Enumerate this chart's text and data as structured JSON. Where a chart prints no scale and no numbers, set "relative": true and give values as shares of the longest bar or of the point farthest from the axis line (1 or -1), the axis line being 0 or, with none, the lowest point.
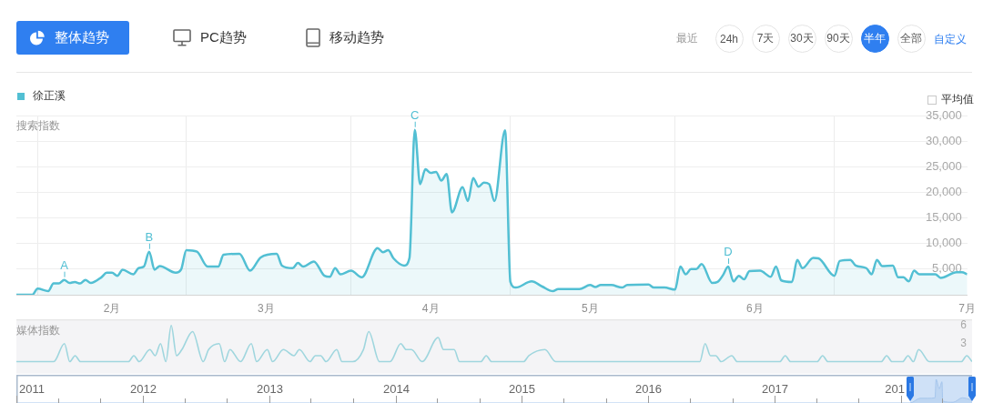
{
  "chart_data": [
    {
      "type": "other",
      "annotations": [
        "整体趋势",
        "PC趋势",
        "移动趋势",
        "最近",
        "24h",
        "7天",
        "30天",
        "90天",
        "半年",
        "全部",
        "自定义"
      ]
    },
    {
      "type": "area",
      "ylabel": "搜索指数",
      "legend": "top left",
      "grid": true,
      "marker": "none",
      "x": [
        "--01-28",
        "--01-31",
        "--02-01",
        "--02-03",
        "--02-04",
        "--02-05",
        "--02-06",
        "--02-07",
        "--02-08",
        "--02-09",
        "--02-10",
        "--02-11",
        "--02-13",
        "--02-14",
        "--02-15",
        "--02-16",
        "--02-17",
        "--02-19",
        "--02-20",
        "--02-21",
        "--02-22",
        "--02-23",
        "--02-24",
        "--02-27",
        "--02-28",
        "--03-01",
        "--03-03",
        "--03-05",
        "--03-07",
        "--03-08",
        "--03-11",
        "--03-13",
        "--03-15",
        "--03-18",
        "--03-19",
        "--03-21",
        "--03-22",
        "--03-23",
        "--03-25",
        "--03-27",
        "--03-28",
        "--03-29",
        "--03-30",
        "--04-01",
        "--04-03",
        "--04-06",
        "--04-07",
        "--04-08",
        "--04-09",
        "--04-11",
        "--04-12",
        "--04-13",
        "--04-14",
        "--04-15",
        "--04-16",
        "--04-17",
        "--04-18",
        "--04-19",
        "--04-20",
        "--04-22",
        "--04-23",
        "--04-24",
        "--04-25",
        "--04-26",
        "--04-27",
        "--04-28",
        "--04-30",
        "--05-01",
        "--05-02",
        "--05-05",
        "--05-07",
        "--05-09",
        "--05-10",
        "--05-14",
        "--05-16",
        "--05-17",
        "--05-18",
        "--05-20",
        "--05-22",
        "--05-23",
        "--05-27",
        "--05-28",
        "--05-30",
        "--06-01",
        "--06-02",
        "--06-03",
        "--06-04",
        "--06-05",
        "--06-06",
        "--06-08",
        "--06-09",
        "--06-10",
        "--06-11",
        "--06-12",
        "--06-13",
        "--06-14",
        "--06-15",
        "--06-17",
        "--06-19",
        "--06-20",
        "--06-21",
        "--06-23",
        "--06-24",
        "--06-25",
        "--06-27",
        "--06-28",
        "--07-01",
        "--07-02",
        "--07-04",
        "--07-05",
        "--07-07",
        "--07-08",
        "--07-09",
        "--07-10",
        "--07-12",
        "--07-13",
        "--07-14",
        "--07-15",
        "--07-16",
        "--07-17",
        "--07-20",
        "--07-21",
        "--07-24",
        "--07-25",
        "--07-26"
      ],
      "series": [
        {
          "name": "徐正溪",
          "color": "#52bfd3",
          "values": [
            0,
            0,
            1200,
            700,
            2200,
            2200,
            2900,
            2300,
            2500,
            2200,
            2900,
            2300,
            3400,
            4300,
            4300,
            3700,
            4900,
            4000,
            5200,
            5500,
            8400,
            4900,
            5600,
            4300,
            4900,
            8700,
            8400,
            5500,
            5500,
            7800,
            8000,
            4700,
            7300,
            8000,
            5700,
            5200,
            6200,
            5500,
            6500,
            3700,
            3500,
            5200,
            4000,
            4700,
            3400,
            9100,
            8300,
            8700,
            7100,
            5700,
            7200,
            32200,
            21600,
            24500,
            23800,
            24000,
            22300,
            23600,
            16100,
            21000,
            18300,
            22800,
            21100,
            21900,
            21600,
            18300,
            32100,
            2500,
            1400,
            2600,
            1600,
            700,
            1100,
            1100,
            1900,
            1500,
            1900,
            1900,
            1400,
            1900,
            2000,
            1400,
            1400,
            1000,
            5500,
            4000,
            5000,
            5000,
            6000,
            2300,
            2500,
            3800,
            5500,
            2600,
            3700,
            3000,
            4600,
            4700,
            3500,
            5500,
            2800,
            2500,
            6800,
            5200,
            7200,
            7100,
            3700,
            6600,
            6800,
            5700,
            5200,
            4000,
            6800,
            5600,
            5700,
            3400,
            3400,
            2600,
            4700,
            4000,
            4000,
            3300,
            4400,
            4400,
            4000
          ]
        }
      ],
      "xlim": [
        "--01-28",
        "--07-26"
      ],
      "xticks": [
        {
          "value": "--02-01",
          "label": null
        },
        {
          "value": "--02-15",
          "label": "2月"
        },
        {
          "value": "--03-01",
          "label": null
        },
        {
          "value": "--03-16",
          "label": "3月"
        },
        {
          "value": "--04-01",
          "label": null
        },
        {
          "value": "--04-16",
          "label": "4月"
        },
        {
          "value": "--05-01",
          "label": null
        },
        {
          "value": "--05-16",
          "label": "5月"
        },
        {
          "value": "--06-01",
          "label": null
        },
        {
          "value": "--06-16",
          "label": "6月"
        },
        {
          "value": "--07-01",
          "label": null
        },
        {
          "value": "--07-26",
          "label": "7月"
        }
      ],
      "ylim": [
        0,
        35000
      ],
      "yticks": [
        {
          "value": 5000,
          "label": "5,000"
        },
        {
          "value": 10000,
          "label": "10,000"
        },
        {
          "value": 15000,
          "label": "15,000"
        },
        {
          "value": 20000,
          "label": "20,000"
        },
        {
          "value": 25000,
          "label": "25,000"
        },
        {
          "value": 30000,
          "label": "30,000"
        },
        {
          "value": 35000,
          "label": "35,000"
        }
      ],
      "annotations": [
        "平均值",
        {
          "text": "A",
          "x": "--02-06",
          "y": 2900
        },
        {
          "text": "B",
          "x": "--02-22",
          "y": 8400
        },
        {
          "text": "C",
          "x": "--04-13",
          "y": 32200
        },
        {
          "text": "D",
          "x": "--06-11",
          "y": 5500
        }
      ]
    },
    {
      "type": "line",
      "ylabel": "媒体指数",
      "tick_labels": "y",
      "marker": "none",
      "x": [
        "--01-28",
        "--02-04",
        "--02-06",
        "--02-07",
        "--02-08",
        "--02-09",
        "--02-18",
        "--02-19",
        "--02-20",
        "--02-22",
        "--02-23",
        "--02-24",
        "--02-25",
        "--02-26",
        "--02-27",
        "--02-28",
        "--03-02",
        "--03-04",
        "--03-05",
        "--03-07",
        "--03-08",
        "--03-09",
        "--03-11",
        "--03-13",
        "--03-14",
        "--03-16",
        "--03-17",
        "--03-19",
        "--03-21",
        "--03-22",
        "--03-24",
        "--03-25",
        "--03-26",
        "--03-27",
        "--03-29",
        "--03-30",
        "--04-01",
        "--04-03",
        "--04-04",
        "--04-06",
        "--04-08",
        "--04-10",
        "--04-11",
        "--04-12",
        "--04-14",
        "--04-17",
        "--04-18",
        "--04-20",
        "--04-21",
        "--04-25",
        "--04-26",
        "--04-27",
        "--05-03",
        "--05-04",
        "--05-07",
        "--05-09",
        "--06-05",
        "--06-06",
        "--06-07",
        "--06-08",
        "--06-09",
        "--06-11",
        "--06-12",
        "--06-20",
        "--06-21",
        "--06-22",
        "--06-27",
        "--06-28",
        "--06-29",
        "--07-09",
        "--07-10",
        "--07-11",
        "--07-13",
        "--07-14",
        "--07-15",
        "--07-16",
        "--07-18",
        "--07-24",
        "--07-25",
        "--07-26"
      ],
      "series": [
        {
          "color": "#9fd6de",
          "values": [
            0,
            0,
            3,
            0,
            1,
            0,
            0,
            1,
            0,
            2,
            1,
            3,
            0,
            6,
            1,
            2,
            5,
            0,
            2,
            3,
            0,
            2,
            0,
            3,
            0,
            2,
            0,
            2,
            1,
            2,
            0,
            1,
            1,
            0,
            2,
            0,
            0,
            2,
            5,
            0,
            0,
            3,
            2,
            2,
            0,
            4,
            2,
            2,
            0,
            0,
            1,
            0,
            0,
            1,
            2,
            0,
            0,
            3,
            1,
            1,
            0,
            1,
            0,
            0,
            1,
            0,
            0,
            1,
            0,
            0,
            1,
            0,
            0,
            1,
            0,
            2,
            0,
            0,
            1,
            0
          ]
        }
      ],
      "xlim": [
        "--01-28",
        "--07-26"
      ],
      "ylim": [
        -2,
        7
      ],
      "yticks": [
        3,
        6
      ]
    },
    {
      "type": "area",
      "relative": true,
      "x": [
        "2011-01-01",
        "2018-01-28",
        "2018-02-26",
        "2018-03-20",
        "2018-04-10",
        "2018-04-13",
        "2018-04-22",
        "2018-04-30",
        "2018-05-02",
        "2018-06-01",
        "2018-06-28",
        "2018-07-26"
      ],
      "series": [
        {
          "color": "#a6c6ec",
          "values": [
            0,
            0,
            0.2,
            0.2,
            0.22,
            1,
            0.6,
            0.9,
            0.08,
            0.03,
            0.22,
            0.12
          ]
        }
      ],
      "xlim": [
        "2011-01-01",
        "2018-07-26"
      ],
      "xticks": [
        "2011",
        {
          "value": "2011-05",
          "label": null
        },
        {
          "value": "2011-09",
          "label": null
        },
        "2012",
        {
          "value": "2012-05",
          "label": null
        },
        {
          "value": "2012-09",
          "label": null
        },
        "2013",
        {
          "value": "2013-05",
          "label": null
        },
        {
          "value": "2013-09",
          "label": null
        },
        "2014",
        {
          "value": "2014-05",
          "label": null
        },
        {
          "value": "2014-09",
          "label": null
        },
        "2015",
        {
          "value": "2015-05",
          "label": null
        },
        {
          "value": "2015-09",
          "label": null
        },
        "2016",
        {
          "value": "2016-05",
          "label": null
        },
        {
          "value": "2016-09",
          "label": null
        },
        "2017",
        {
          "value": "2017-05",
          "label": null
        },
        {
          "value": "2017-09",
          "label": null
        },
        {
          "value": "2018",
          "label": "201"
        },
        {
          "value": "2018-05",
          "label": null
        }
      ],
      "bands": [
        {
          "axis": "x",
          "from": "2018-01-28",
          "to": "2018-07-26",
          "color": "#cfe1f7"
        }
      ]
    }
  ]
}
